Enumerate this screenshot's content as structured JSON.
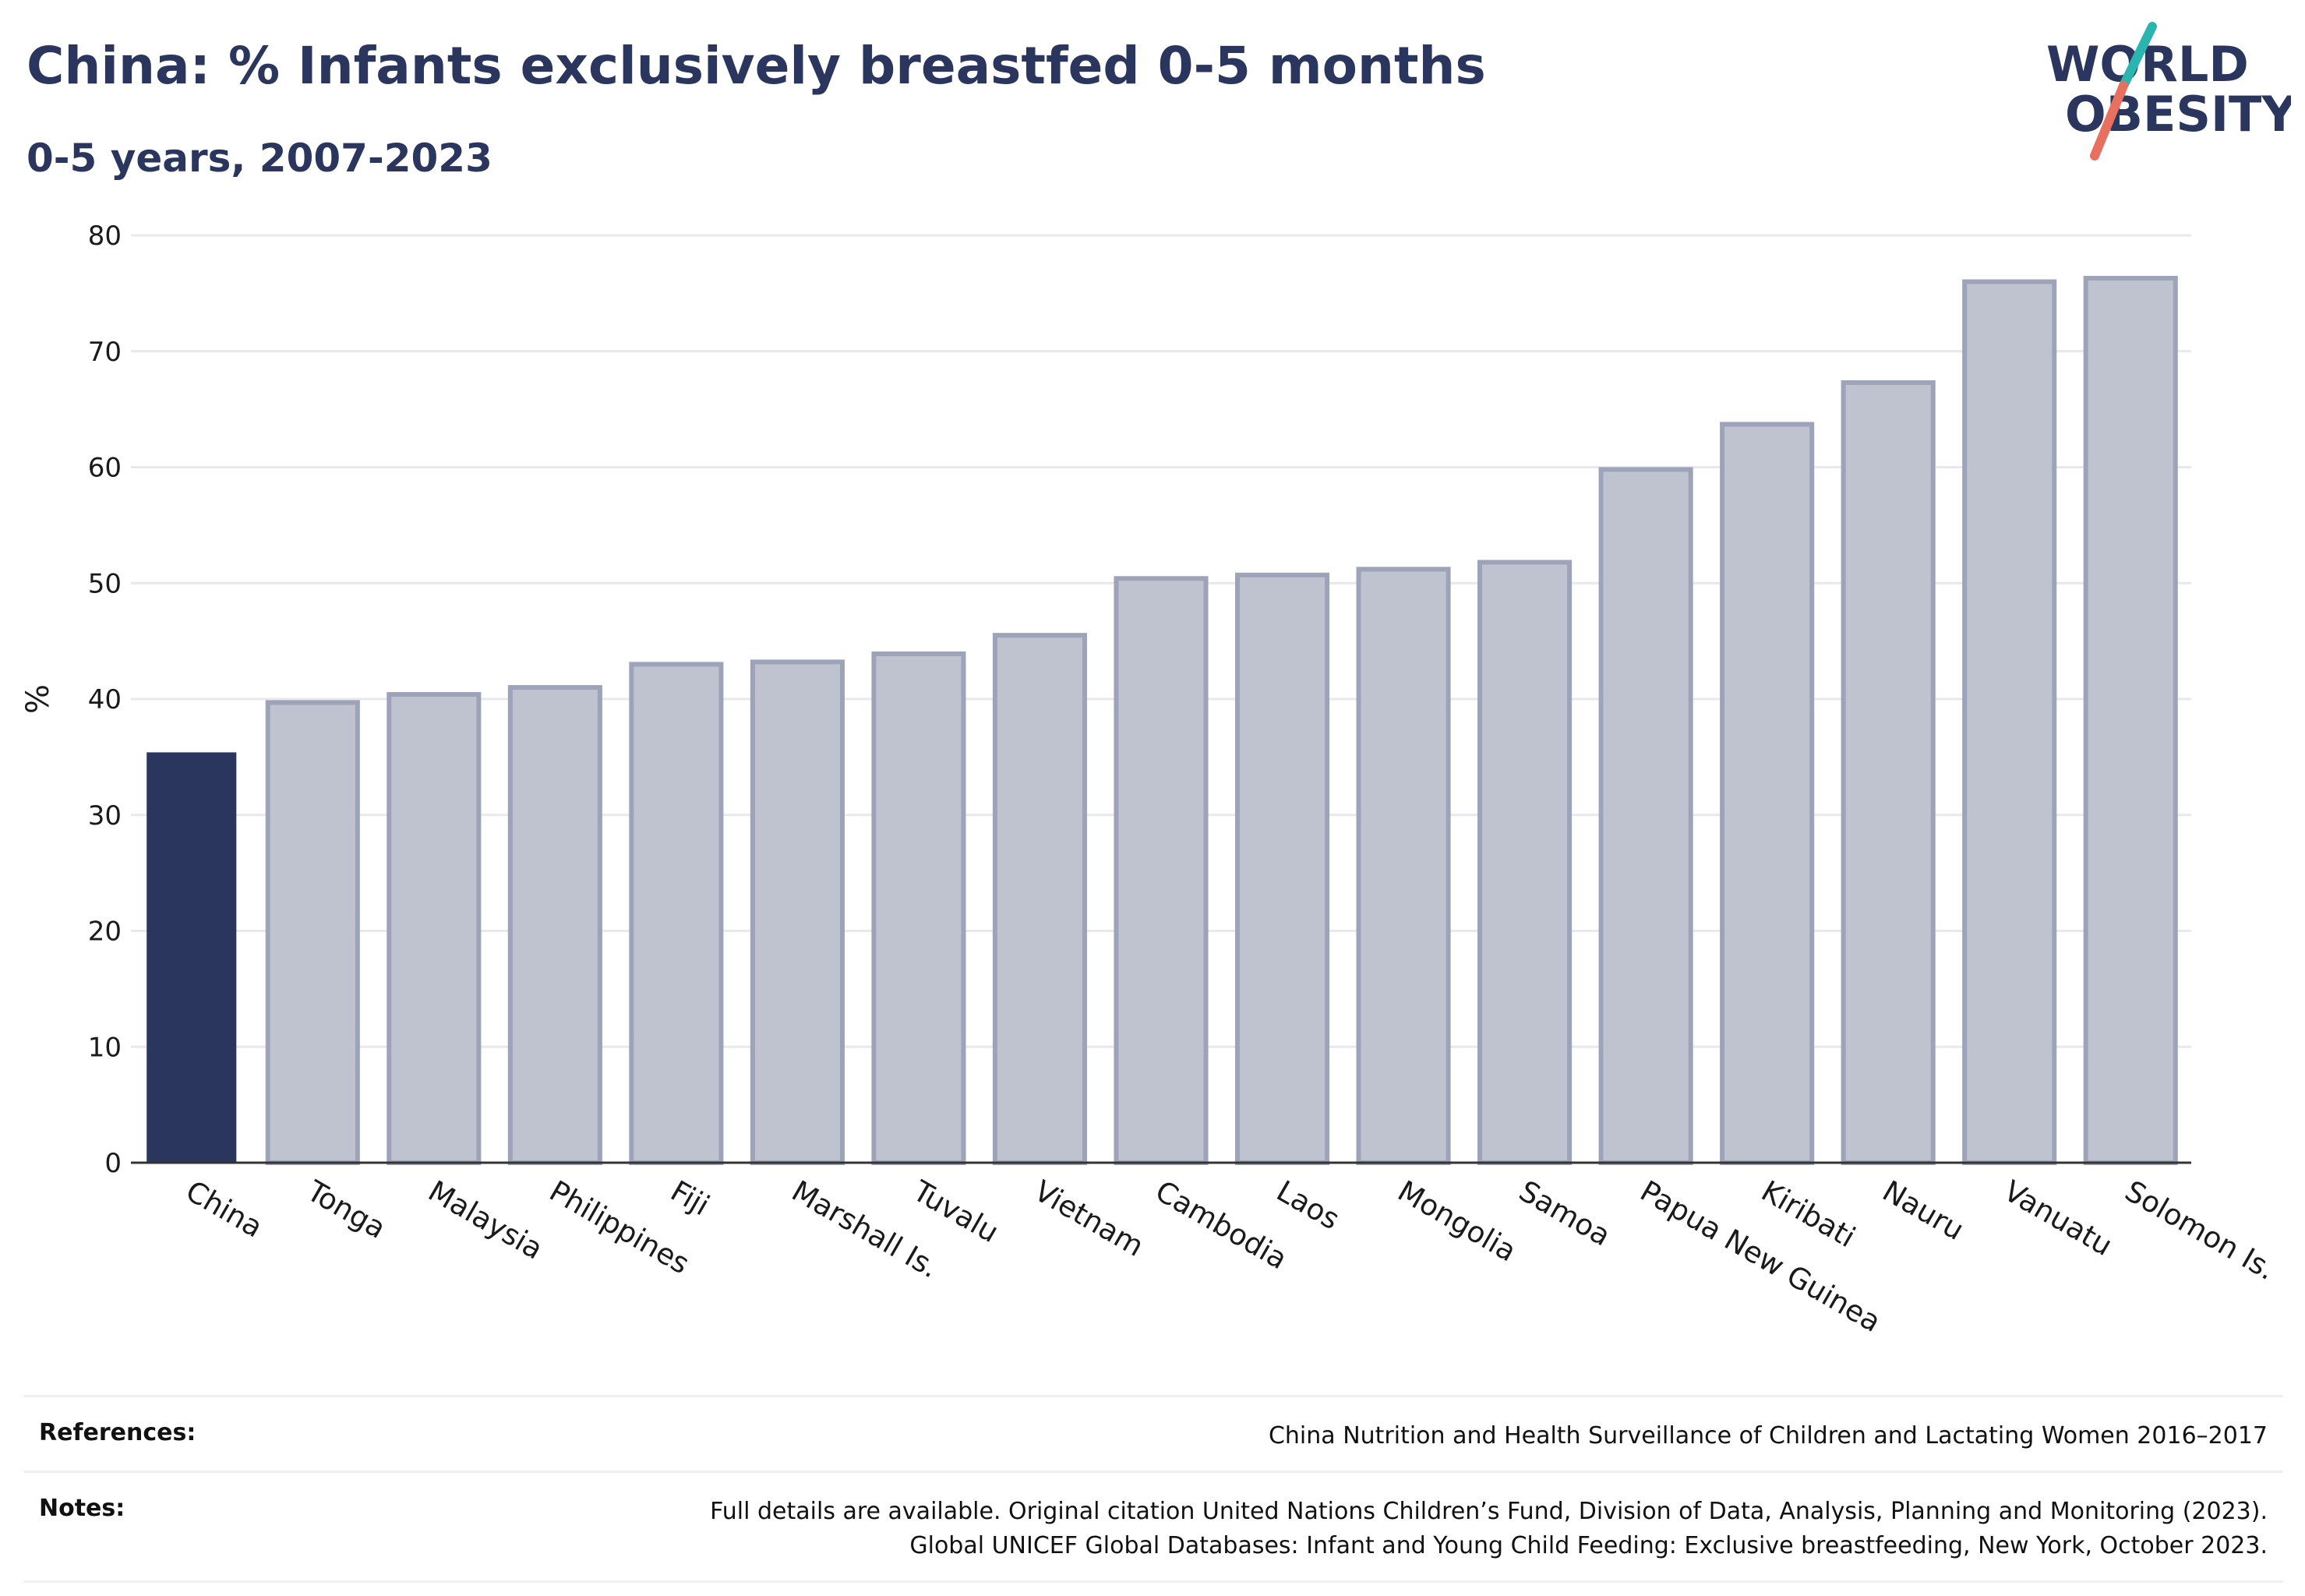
{
  "title": "China: % Infants exclusively breastfed 0-5 months",
  "subtitle": "0-5 years, 2007-2023",
  "logo": {
    "line1": "WORLD",
    "line2": "OBESITY",
    "accent_teal": "#2bb5b0",
    "accent_coral": "#e8705f",
    "text_color": "#2b365f"
  },
  "colors": {
    "highlight": "#2b365f",
    "other_fill": "#bfc3d0",
    "other_stroke": "#9da3b8",
    "grid": "#e8e8ee"
  },
  "chart_data": {
    "type": "bar",
    "categories": [
      "China",
      "Tonga",
      "Malaysia",
      "Philippines",
      "Fiji",
      "Marshall Is.",
      "Tuvalu",
      "Vietnam",
      "Cambodia",
      "Laos",
      "Mongolia",
      "Samoa",
      "Papua New Guinea",
      "Kiribati",
      "Nauru",
      "Vanuatu",
      "Solomon Is."
    ],
    "values": [
      35.4,
      39.7,
      40.4,
      41.0,
      43.0,
      43.2,
      43.9,
      45.5,
      50.4,
      50.7,
      51.2,
      51.8,
      59.8,
      63.7,
      67.3,
      76.0,
      76.3
    ],
    "highlight": "China",
    "xlabel": "",
    "ylabel": "%",
    "ylim": [
      0,
      80
    ],
    "yticks": [
      0,
      10,
      20,
      30,
      40,
      50,
      60,
      70,
      80
    ],
    "grid": true
  },
  "footer": {
    "references_label": "References:",
    "references_text": "China Nutrition and Health Surveillance of Children and Lactating Women 2016–2017",
    "notes_label": "Notes:",
    "notes_line1": "Full details are available. Original citation United Nations Children’s Fund, Division of Data, Analysis, Planning and Monitoring (2023).",
    "notes_line2": "Global UNICEF Global Databases: Infant and Young Child Feeding: Exclusive breastfeeding, New York, October 2023."
  }
}
